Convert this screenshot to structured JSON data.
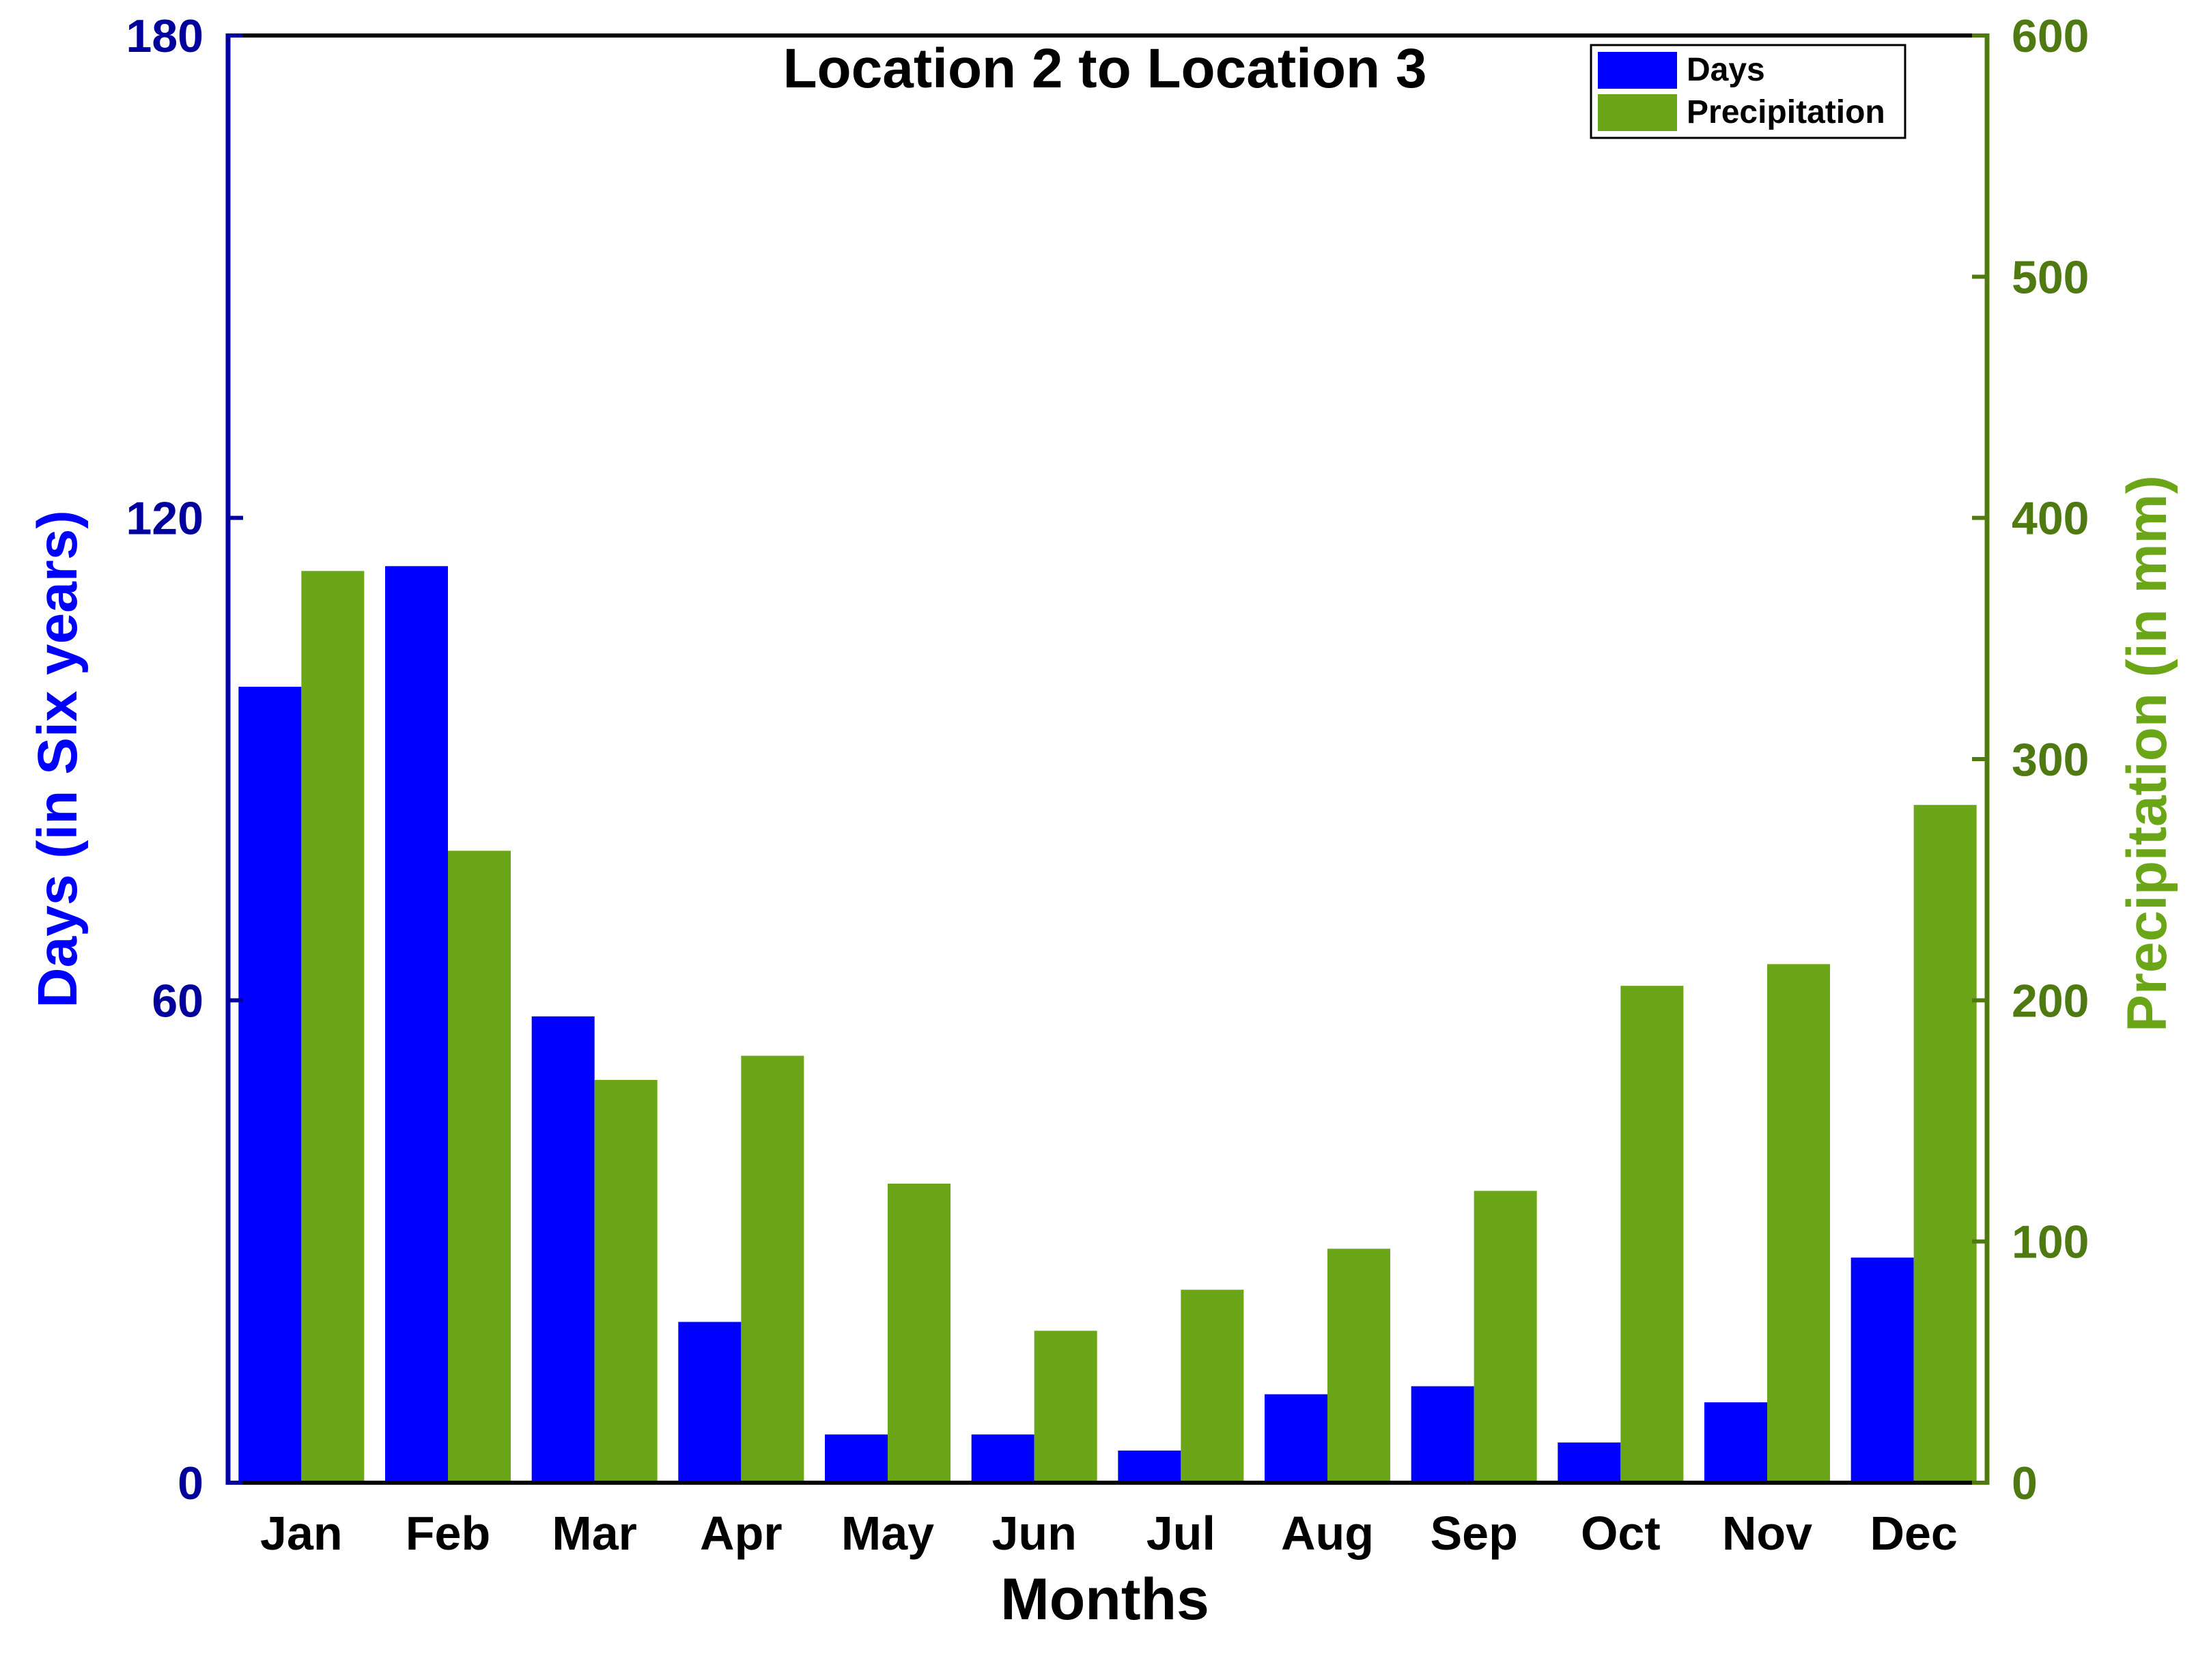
{
  "chart_data": {
    "type": "bar",
    "title": "Location 2 to Location 3",
    "xlabel": "Months",
    "ylabel_left": "Days (in Six years)",
    "ylabel_right": "Precipitation (in mm)",
    "categories": [
      "Jan",
      "Feb",
      "Mar",
      "Apr",
      "May",
      "Jun",
      "Jul",
      "Aug",
      "Sep",
      "Oct",
      "Nov",
      "Dec"
    ],
    "ylim_left": [
      0,
      180
    ],
    "ylim_right": [
      0,
      600
    ],
    "yticks_left": [
      0,
      60,
      120,
      180
    ],
    "yticks_right": [
      0,
      100,
      200,
      300,
      400,
      500,
      600
    ],
    "legend_position": "top-right",
    "grid": false,
    "series": [
      {
        "name": "Days",
        "axis": "left",
        "color": "#0000ff",
        "values": [
          99,
          114,
          58,
          20,
          6,
          6,
          4,
          11,
          12,
          5,
          10,
          28
        ]
      },
      {
        "name": "Precipitation",
        "axis": "right",
        "color": "#6aa617",
        "values": [
          378,
          262,
          167,
          177,
          124,
          63,
          80,
          97,
          121,
          206,
          215,
          281
        ]
      }
    ],
    "colors": {
      "left_axis": "#00009c",
      "left_label": "#0000ff",
      "right_axis": "#4f7a12",
      "right_label": "#6aa617",
      "text": "#000000"
    }
  }
}
